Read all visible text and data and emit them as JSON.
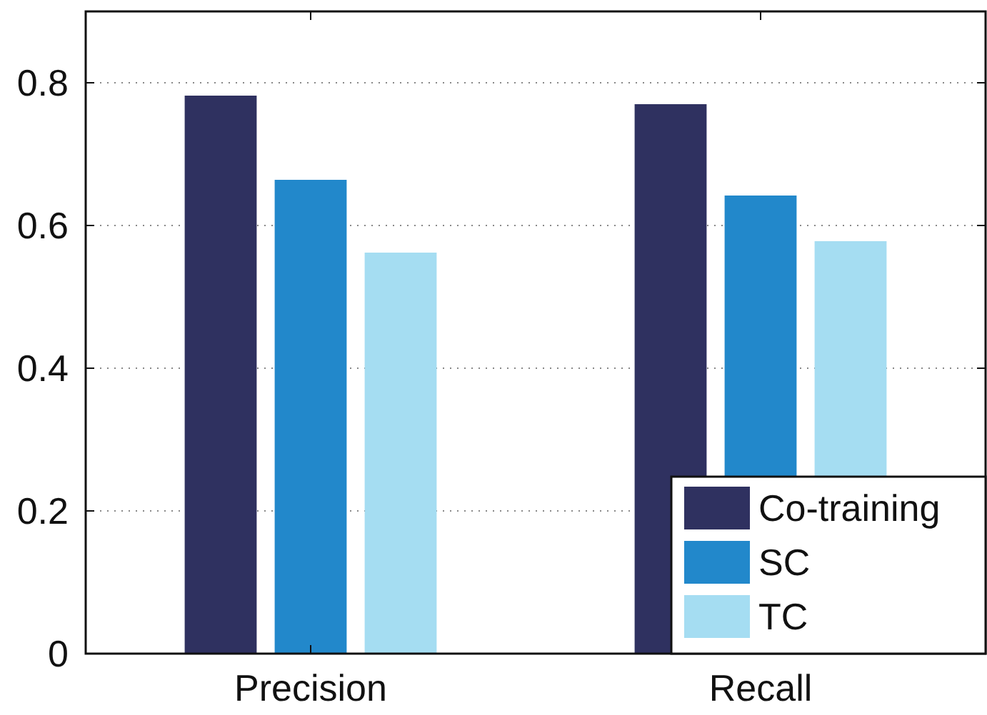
{
  "chart_data": {
    "type": "bar",
    "categories": [
      "Precision",
      "Recall"
    ],
    "series": [
      {
        "name": "Co-training",
        "color": "#2f3160",
        "values": [
          0.782,
          0.77
        ]
      },
      {
        "name": "SC",
        "color": "#2288cb",
        "values": [
          0.664,
          0.642
        ]
      },
      {
        "name": "TC",
        "color": "#a5ddf2",
        "values": [
          0.562,
          0.578
        ]
      }
    ],
    "ylim": [
      0,
      0.9
    ],
    "yticks": [
      0,
      0.2,
      0.4,
      0.6,
      0.8
    ],
    "grid": "y",
    "legend": "bottom right"
  }
}
